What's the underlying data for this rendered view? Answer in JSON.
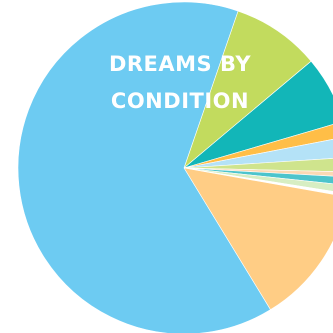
{
  "chart_data": {
    "type": "pie",
    "title": "DREAMS BY\nCONDITION",
    "slices": [
      {
        "value": 8.6,
        "color": "#c2db5e"
      },
      {
        "value": 6.6,
        "color": "#12b6b8"
      },
      {
        "value": 1.5,
        "color": "#ffbe47"
      },
      {
        "value": 2.0,
        "color": "#b4e2f7"
      },
      {
        "value": 1.4,
        "color": "#cfe48d"
      },
      {
        "value": 0.5,
        "color": "#fbd9b4"
      },
      {
        "value": 0.8,
        "color": "#4cc4cc"
      },
      {
        "value": 0.8,
        "color": "#d7eec3"
      },
      {
        "value": 0.3,
        "color": "#ffffff"
      },
      {
        "value": 13.5,
        "color": "#ffcd85"
      },
      {
        "value": 64.0,
        "color": "#6dcbf2"
      }
    ]
  }
}
